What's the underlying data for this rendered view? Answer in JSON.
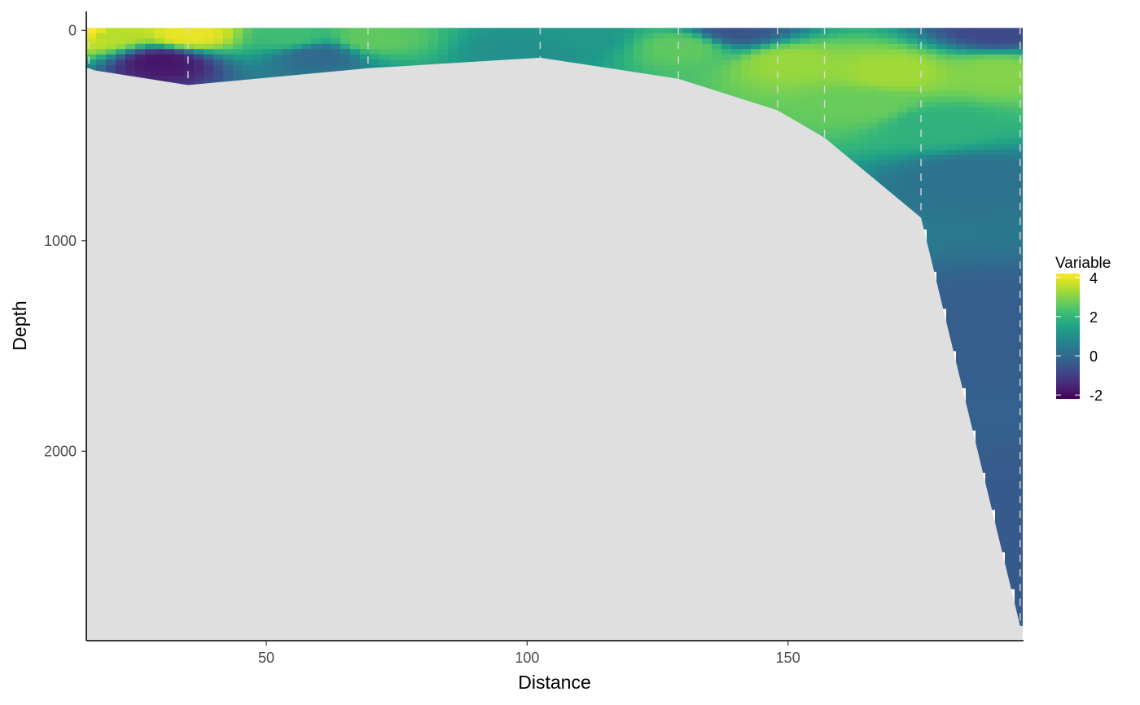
{
  "chart_data": {
    "type": "heatmap",
    "title": "",
    "xlabel": "Distance",
    "ylabel": "Depth",
    "xlim": [
      15.5,
      195
    ],
    "ylim": [
      2900,
      -90
    ],
    "y_reversed": true,
    "x_ticks": [
      50,
      100,
      150
    ],
    "x_tick_labels": [
      "50",
      "100",
      "150"
    ],
    "y_ticks": [
      0,
      1000,
      2000
    ],
    "y_tick_labels": [
      "0",
      "1000",
      "2000"
    ],
    "grid": false,
    "colormap": "viridis",
    "legend": {
      "title": "Variable",
      "placement": "right",
      "range": [
        -2.2,
        4.2
      ],
      "ticks": [
        4,
        2,
        0,
        -2
      ],
      "tick_labels": [
        "4",
        "2",
        "0",
        "-2"
      ]
    },
    "stations_x": [
      16,
      35,
      69.5,
      102.5,
      129,
      148,
      157,
      175.5,
      194.5
    ],
    "bottom_profile": {
      "x": [
        15.5,
        16,
        17,
        35,
        69.5,
        102.5,
        129,
        148,
        157,
        175.5,
        194.5,
        195
      ],
      "depth": [
        180,
        180,
        190,
        260,
        180,
        130,
        230,
        380,
        510,
        890,
        2830,
        2830
      ]
    },
    "field_anchors": [
      {
        "x": 16,
        "depth": 0,
        "value": 4.2
      },
      {
        "x": 20,
        "depth": 20,
        "value": 3.5
      },
      {
        "x": 35,
        "depth": 20,
        "value": 4.0
      },
      {
        "x": 55,
        "depth": 30,
        "value": 2.2
      },
      {
        "x": 70,
        "depth": 40,
        "value": 2.6
      },
      {
        "x": 110,
        "depth": 30,
        "value": 1.2
      },
      {
        "x": 130,
        "depth": 80,
        "value": 2.6
      },
      {
        "x": 150,
        "depth": 150,
        "value": 3.2
      },
      {
        "x": 170,
        "depth": 200,
        "value": 3.3
      },
      {
        "x": 190,
        "depth": 200,
        "value": 3.0
      },
      {
        "x": 165,
        "depth": 350,
        "value": 2.7
      },
      {
        "x": 178,
        "depth": 450,
        "value": 1.9
      },
      {
        "x": 185,
        "depth": 700,
        "value": 0.2
      },
      {
        "x": 190,
        "depth": 1400,
        "value": -0.3
      },
      {
        "x": 192,
        "depth": 2400,
        "value": -0.4
      },
      {
        "x": 30,
        "depth": 150,
        "value": -1.8
      },
      {
        "x": 60,
        "depth": 120,
        "value": 0.0
      },
      {
        "x": 100,
        "depth": 100,
        "value": 1.0
      },
      {
        "x": 140,
        "depth": 0,
        "value": -0.5
      },
      {
        "x": 190,
        "depth": 0,
        "value": -0.8
      }
    ]
  },
  "colors": {
    "background": "#ffffff",
    "topography": "#dfdfdf",
    "station_lines": "#d9d9d9",
    "axis": "#000000"
  }
}
